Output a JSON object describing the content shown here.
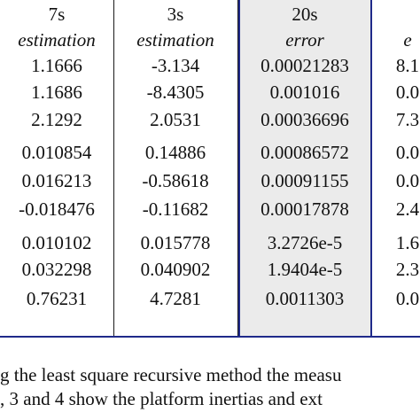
{
  "table": {
    "columns": [
      {
        "header": "7s",
        "subheader": "estimation"
      },
      {
        "header": "3s",
        "subheader": "estimation"
      },
      {
        "header": "20s",
        "subheader": "error"
      },
      {
        "header": "",
        "subheader": "e"
      }
    ],
    "rows": [
      [
        "1.1666",
        "-3.134",
        "0.00021283",
        "8.1"
      ],
      [
        "1.1686",
        "-8.4305",
        "0.001016",
        "0.0"
      ],
      [
        "2.1292",
        "2.0531",
        "0.00036696",
        "7.3"
      ],
      [
        "0.010854",
        "0.14886",
        "0.00086572",
        "0.0"
      ],
      [
        "0.016213",
        "-0.58618",
        "0.00091155",
        "0.0"
      ],
      [
        "-0.018476",
        "-0.11682",
        "0.00017878",
        "2.4"
      ],
      [
        "0.010102",
        "0.015778",
        "3.2726e-5",
        "1.6"
      ],
      [
        "0.032298",
        "0.040902",
        "1.9404e-5",
        "2.3"
      ],
      [
        "0.76231",
        "4.7281",
        "0.0011303",
        "0.0"
      ]
    ]
  },
  "caption": {
    "line1": "g the least square recursive method the measu",
    "line2": ", 3 and 4 show the platform inertias and ext"
  }
}
